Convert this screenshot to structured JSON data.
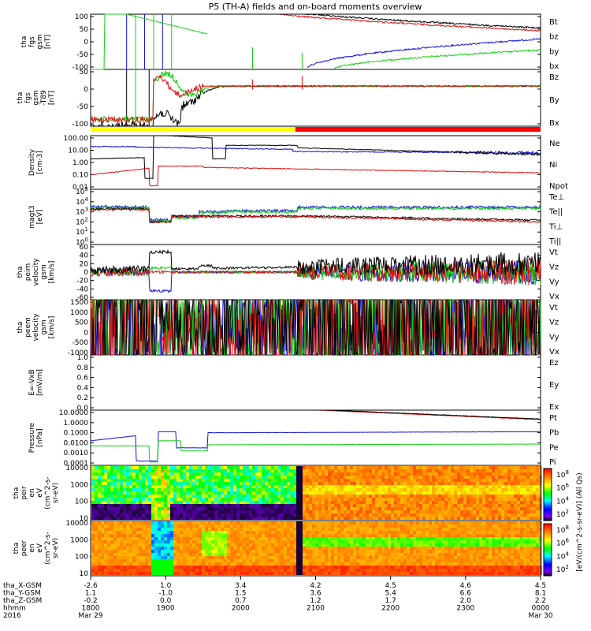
{
  "title": "P5 (TH-A) fields and on-board moments overview",
  "colors": {
    "black": "#000000",
    "red": "#e01010",
    "green": "#10d010",
    "blue": "#1010e0",
    "yellow": "#ffff00",
    "barred": "#ff0000"
  },
  "chart_data": {
    "type": "multi-panel time series",
    "x_range": [
      "1800",
      "0000"
    ],
    "panels": [
      {
        "id": "fgs-gsm",
        "ylabel": [
          "tha",
          "fgs",
          "gsm",
          "[nT]"
        ],
        "ylim": [
          -100,
          100
        ],
        "ticks": [
          "100",
          "50",
          "0",
          "-50",
          "-100"
        ],
        "legend": [
          {
            "name": "Bt",
            "color": "#000000"
          },
          {
            "name": "bz",
            "color": "#e01010"
          },
          {
            "name": "by",
            "color": "#10d010"
          },
          {
            "name": "bx",
            "color": "#1010e0"
          }
        ]
      },
      {
        "id": "fgs-gsm-t89",
        "ylabel": [
          "tha",
          "fgs",
          "gsm",
          "-T89",
          "[nT]"
        ],
        "ylim": [
          -120,
          50
        ],
        "ticks": [
          "50",
          "0",
          "-50",
          "-100"
        ],
        "legend": [
          {
            "name": "Bz",
            "color": "#e01010"
          },
          {
            "name": "By",
            "color": "#10d010"
          },
          {
            "name": "Bx",
            "color": "#1010e0"
          }
        ]
      },
      {
        "id": "density",
        "ylabel": [
          "Density",
          "[cm-3]"
        ],
        "scale": "log",
        "ticks": [
          "100.00",
          "10.00",
          "1.00",
          "0.10",
          "0.01"
        ],
        "legend": [
          {
            "name": "Ne",
            "color": "#e01010"
          },
          {
            "name": "Ni",
            "color": "#000000"
          },
          {
            "name": "Npot",
            "color": "#1010e0"
          }
        ]
      },
      {
        "id": "temperature",
        "ylabel": [
          "magt3",
          "[eV]"
        ],
        "scale": "log",
        "ticks": [
          "10^5",
          "10^4",
          "10^3",
          "10^2",
          "10^1",
          "10^0"
        ],
        "legend": [
          {
            "name": "Te⊥",
            "color": "#e01010"
          },
          {
            "name": "Te||",
            "color": "#000000"
          },
          {
            "name": "Ti⊥",
            "color": "#1010e0"
          },
          {
            "name": "Ti||",
            "color": "#10d010"
          }
        ]
      },
      {
        "id": "ion-velocity",
        "ylabel": [
          "tha",
          "peim",
          "velocity",
          "gsm",
          "[km/s]"
        ],
        "ylim": [
          -60,
          60
        ],
        "ticks": [
          "60",
          "40",
          "20",
          "0",
          "-20",
          "-40",
          "-60"
        ],
        "legend": [
          {
            "name": "Vt",
            "color": "#000000"
          },
          {
            "name": "Vz",
            "color": "#e01010"
          },
          {
            "name": "Vy",
            "color": "#10d010"
          },
          {
            "name": "Vx",
            "color": "#1010e0"
          }
        ]
      },
      {
        "id": "electron-velocity",
        "ylabel": [
          "tha",
          "peem",
          "velocity",
          "gsm",
          "[km/s]"
        ],
        "ylim": [
          -1000,
          1500
        ],
        "ticks": [
          "1500",
          "1000",
          "500",
          "0",
          "-500",
          "-1000"
        ],
        "legend": [
          {
            "name": "Vt",
            "color": "#000000"
          },
          {
            "name": "Vz",
            "color": "#e01010"
          },
          {
            "name": "Vy",
            "color": "#10d010"
          },
          {
            "name": "Vx",
            "color": "#1010e0"
          }
        ]
      },
      {
        "id": "efield",
        "ylabel": [
          "E=-VxB",
          "[mV/m]"
        ],
        "ylim": [
          0,
          1
        ],
        "ticks": [
          "1.0",
          "0.8",
          "0.6",
          "0.4",
          "0.2",
          "0.0"
        ],
        "legend": [
          {
            "name": "Ez",
            "color": "#e01010"
          },
          {
            "name": "Ey",
            "color": "#10d010"
          },
          {
            "name": "Ex",
            "color": "#1010e0"
          }
        ]
      },
      {
        "id": "pressure",
        "ylabel": [
          "Pressure",
          "[nPa]"
        ],
        "scale": "log",
        "ticks": [
          "10.0000",
          "1.0000",
          "0.1000",
          "0.0100",
          "0.0010",
          "0.0001"
        ],
        "legend": [
          {
            "name": "Pt",
            "color": "#000000"
          },
          {
            "name": "Pb",
            "color": "#e01010"
          },
          {
            "name": "Pe",
            "color": "#10d010"
          },
          {
            "name": "Pi",
            "color": "#1010e0"
          }
        ]
      },
      {
        "id": "ion-eflux",
        "ylabel": [
          "tha",
          "peir",
          "en",
          "eV",
          "(cm^2-s-",
          "sr-eV)"
        ],
        "scale": "log",
        "ticks": [
          "10000",
          "1000",
          "100",
          "10"
        ]
      },
      {
        "id": "electron-eflux",
        "ylabel": [
          "tha",
          "peer",
          "en",
          "eV",
          "(cm^2-s-",
          "sr-eV)"
        ],
        "scale": "log",
        "ticks": [
          "10000",
          "1000",
          "100",
          "10"
        ]
      }
    ],
    "colorbar": {
      "label": "[eV/(cm^2-s-sr-eV)] (All Qs)",
      "ticks": [
        "10^8",
        "10^6",
        "10^4",
        "10^2"
      ]
    },
    "x_axis_rows": [
      {
        "label": "tha_X-GSM",
        "values": [
          "-2.6",
          "1.0",
          "3.4",
          "4.2",
          "4.5",
          "4.6",
          "4.5"
        ]
      },
      {
        "label": "tha_Y-GSM",
        "values": [
          "1.1",
          "-1.0",
          "1.5",
          "3.6",
          "5.4",
          "6.6",
          "8.1"
        ]
      },
      {
        "label": "tha_Z-GSM",
        "values": [
          "-0.2",
          "0.0",
          "0.7",
          "1.2",
          "1.7",
          "2.0",
          "2.2"
        ]
      },
      {
        "label": "hhmm",
        "values": [
          "1800",
          "1900",
          "2000",
          "2100",
          "2200",
          "2300",
          "0000"
        ]
      },
      {
        "label": "2016",
        "values": [
          "Mar 29",
          "",
          "",
          "",
          "",
          "",
          "Mar 30"
        ]
      }
    ]
  }
}
